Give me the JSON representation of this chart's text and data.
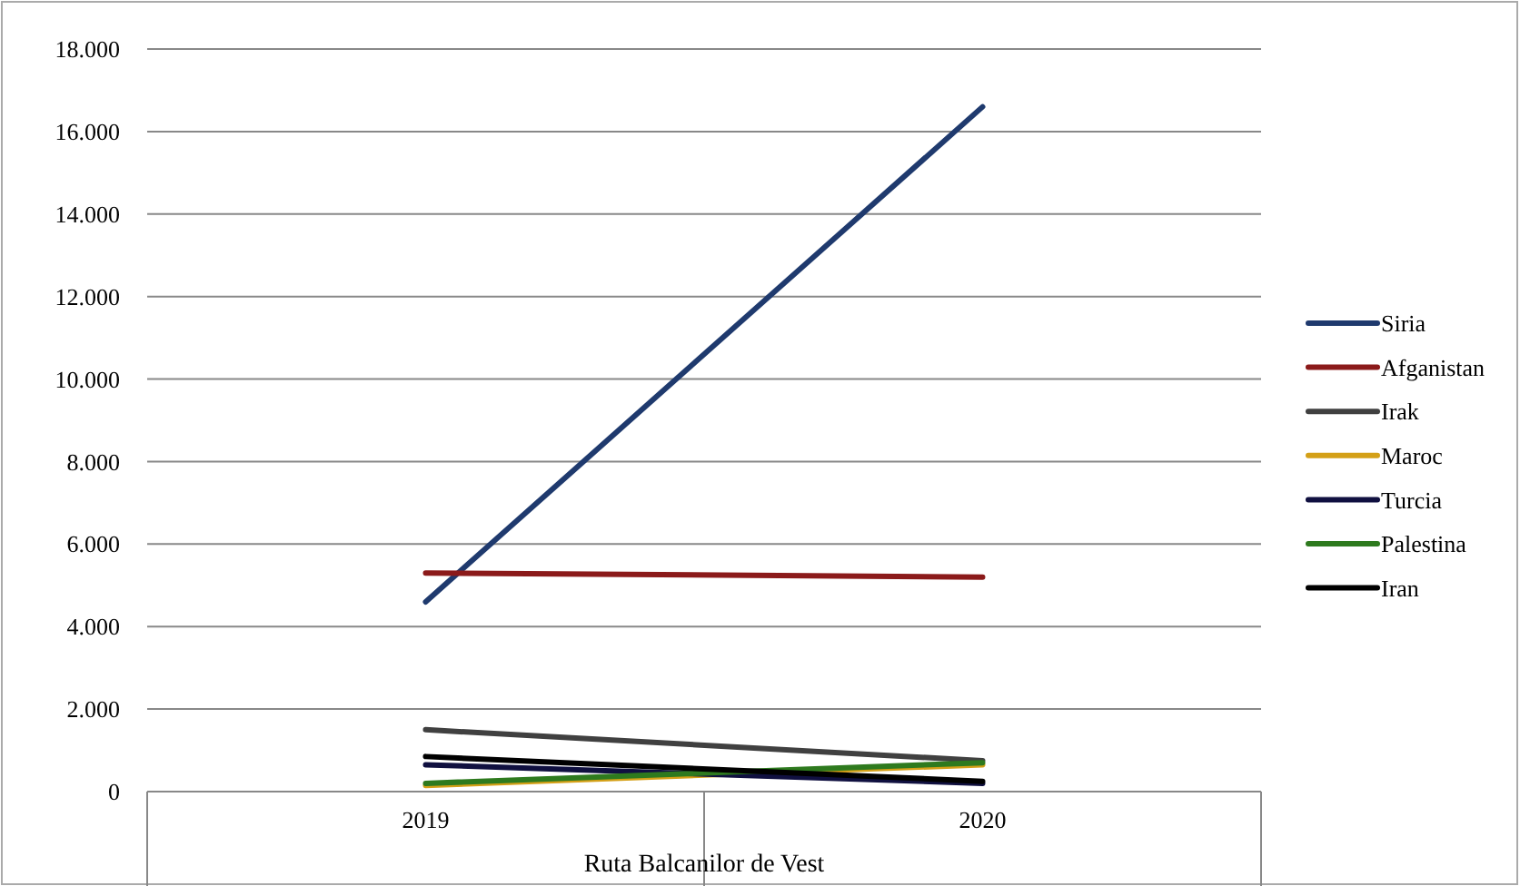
{
  "chart_data": {
    "type": "line",
    "categories": [
      "2019",
      "2020"
    ],
    "xlabel": "Ruta Balcanilor de Vest",
    "ylim": [
      0,
      18000
    ],
    "yticks": [
      {
        "value": 0,
        "label": "0"
      },
      {
        "value": 2000,
        "label": "2.000"
      },
      {
        "value": 4000,
        "label": "4.000"
      },
      {
        "value": 6000,
        "label": "6.000"
      },
      {
        "value": 8000,
        "label": "8.000"
      },
      {
        "value": 10000,
        "label": "10.000"
      },
      {
        "value": 12000,
        "label": "12.000"
      },
      {
        "value": 14000,
        "label": "14.000"
      },
      {
        "value": 16000,
        "label": "16.000"
      },
      {
        "value": 18000,
        "label": "18.000"
      }
    ],
    "grid": "y",
    "legend": "right",
    "marker": "none",
    "line_style": "solid",
    "series": [
      {
        "name": "Siria",
        "color": "#1f3a6e",
        "values": [
          4600,
          16600
        ]
      },
      {
        "name": "Afganistan",
        "color": "#8b1a1a",
        "values": [
          5300,
          5200
        ]
      },
      {
        "name": "Irak",
        "color": "#404040",
        "values": [
          1500,
          750
        ]
      },
      {
        "name": "Maroc",
        "color": "#d4a017",
        "values": [
          150,
          650
        ]
      },
      {
        "name": "Turcia",
        "color": "#101040",
        "values": [
          650,
          200
        ]
      },
      {
        "name": "Palestina",
        "color": "#2e7a1e",
        "values": [
          200,
          700
        ]
      },
      {
        "name": "Iran",
        "color": "#000000",
        "values": [
          850,
          250
        ]
      }
    ]
  }
}
